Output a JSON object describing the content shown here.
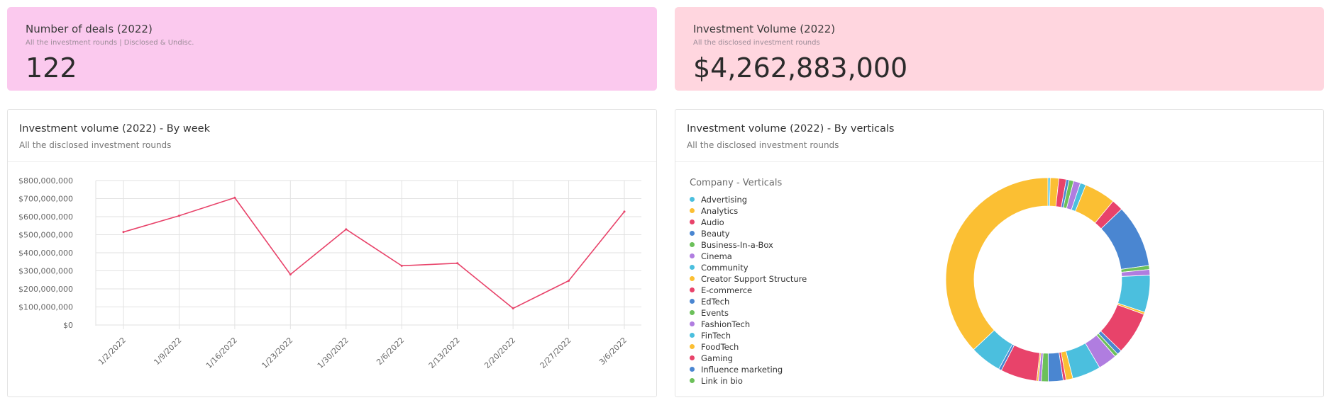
{
  "kpis": {
    "deals": {
      "title": "Number of deals (2022)",
      "subtitle": "All the investment rounds | Disclosed & Undisc.",
      "value": "122"
    },
    "volume": {
      "title": "Investment Volume (2022)",
      "subtitle": "All the disclosed investment rounds",
      "value": "$4,262,883,000"
    }
  },
  "week_card": {
    "title": "Investment volume (2022) - By week",
    "subtitle": "All the disclosed investment rounds"
  },
  "verticals_card": {
    "title": "Investment volume (2022) - By verticals",
    "subtitle": "All the disclosed investment rounds"
  },
  "chart_data": [
    {
      "type": "line",
      "title": "Investment volume (2022) - By week",
      "xlabel": "",
      "ylabel": "",
      "categories": [
        "1/2/2022",
        "1/9/2022",
        "1/16/2022",
        "1/23/2022",
        "1/30/2022",
        "2/6/2022",
        "2/13/2022",
        "2/20/2022",
        "2/27/2022",
        "3/6/2022"
      ],
      "series": [
        {
          "values": [
            515000000,
            605000000,
            705000000,
            280000000,
            530000000,
            328000000,
            342000000,
            92000000,
            245000000,
            628000000
          ],
          "color": "#e8436a"
        }
      ],
      "ylim": [
        0,
        800000000
      ],
      "yticks": [
        0,
        100000000,
        200000000,
        300000000,
        400000000,
        500000000,
        600000000,
        700000000,
        800000000
      ],
      "ytick_labels": [
        "$0",
        "$100,000,000",
        "$200,000,000",
        "$300,000,000",
        "$400,000,000",
        "$500,000,000",
        "$600,000,000",
        "$700,000,000",
        "$800,000,000"
      ],
      "grid": true
    },
    {
      "type": "pie",
      "legend_title": "Company - Verticals",
      "legend_position": "left",
      "legend": [
        {
          "label": "Advertising",
          "color": "#4bbfde"
        },
        {
          "label": "Analytics",
          "color": "#fbbf33"
        },
        {
          "label": "Audio",
          "color": "#e8436a"
        },
        {
          "label": "Beauty",
          "color": "#4a86d1"
        },
        {
          "label": "Business-In-a-Box",
          "color": "#6cc05a"
        },
        {
          "label": "Cinema",
          "color": "#b07de0"
        },
        {
          "label": "Community",
          "color": "#4bbfde"
        },
        {
          "label": "Creator Support Structure",
          "color": "#fbbf33"
        },
        {
          "label": "E-commerce",
          "color": "#e8436a"
        },
        {
          "label": "EdTech",
          "color": "#4a86d1"
        },
        {
          "label": "Events",
          "color": "#6cc05a"
        },
        {
          "label": "FashionTech",
          "color": "#b07de0"
        },
        {
          "label": "FinTech",
          "color": "#4bbfde"
        },
        {
          "label": "FoodTech",
          "color": "#fbbf33"
        },
        {
          "label": "Gaming",
          "color": "#e8436a"
        },
        {
          "label": "Influence marketing",
          "color": "#4a86d1"
        },
        {
          "label": "Link in bio",
          "color": "#6cc05a"
        }
      ],
      "slices": [
        {
          "value": 0.4,
          "color": "#4bbfde"
        },
        {
          "value": 1.5,
          "color": "#fbbf33"
        },
        {
          "value": 1.3,
          "color": "#e8436a"
        },
        {
          "value": 0.5,
          "color": "#4a86d1"
        },
        {
          "value": 0.8,
          "color": "#6cc05a"
        },
        {
          "value": 1.2,
          "color": "#b07de0"
        },
        {
          "value": 1.0,
          "color": "#4bbfde"
        },
        {
          "value": 5.5,
          "color": "#fbbf33"
        },
        {
          "value": 2.0,
          "color": "#e8436a"
        },
        {
          "value": 11.0,
          "color": "#4a86d1"
        },
        {
          "value": 0.7,
          "color": "#6cc05a"
        },
        {
          "value": 1.0,
          "color": "#b07de0"
        },
        {
          "value": 6.5,
          "color": "#4bbfde"
        },
        {
          "value": 0.4,
          "color": "#fbbf33"
        },
        {
          "value": 7.5,
          "color": "#e8436a"
        },
        {
          "value": 0.8,
          "color": "#4a86d1"
        },
        {
          "value": 0.6,
          "color": "#6cc05a"
        },
        {
          "value": 3.3,
          "color": "#b07de0"
        },
        {
          "value": 5.0,
          "color": "#4bbfde"
        },
        {
          "value": 1.2,
          "color": "#fbbf33"
        },
        {
          "value": 0.5,
          "color": "#e8436a"
        },
        {
          "value": 2.6,
          "color": "#4a86d1"
        },
        {
          "value": 1.2,
          "color": "#6cc05a"
        },
        {
          "value": 0.5,
          "color": "#b07de0"
        },
        {
          "value": 0.3,
          "color": "#fbbf33"
        },
        {
          "value": 6.4,
          "color": "#e8436a"
        },
        {
          "value": 0.5,
          "color": "#4a86d1"
        },
        {
          "value": 5.5,
          "color": "#4bbfde"
        },
        {
          "value": 41.0,
          "color": "#fbbf33"
        }
      ]
    }
  ]
}
